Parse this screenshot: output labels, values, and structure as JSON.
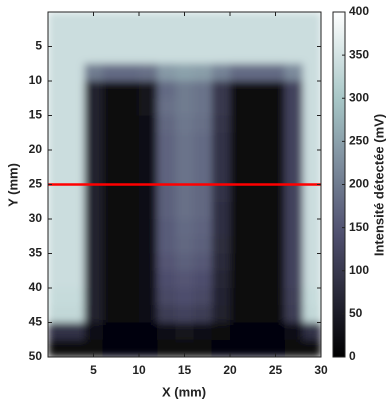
{
  "chart_data": {
    "type": "heatmap",
    "xlabel": "X (mm)",
    "ylabel": "Y (mm)",
    "colorbar_label": "Intensité détectée (mV)",
    "colormap": "bone",
    "x": [
      1,
      3,
      5,
      7,
      9,
      11,
      13,
      15,
      17,
      19,
      21,
      23,
      25,
      27,
      29
    ],
    "y": [
      1.25,
      3.75,
      6.25,
      8.75,
      11.25,
      13.75,
      16.25,
      18.75,
      21.25,
      23.75,
      26.25,
      28.75,
      31.25,
      33.75,
      36.25,
      38.75,
      41.25,
      43.75,
      46.25,
      48.75
    ],
    "z": [
      [
        340,
        340,
        340,
        340,
        340,
        340,
        340,
        340,
        340,
        340,
        340,
        340,
        340,
        340,
        340
      ],
      [
        340,
        340,
        340,
        340,
        340,
        340,
        340,
        340,
        340,
        340,
        340,
        340,
        340,
        340,
        340
      ],
      [
        340,
        340,
        340,
        340,
        340,
        340,
        340,
        340,
        340,
        340,
        340,
        340,
        340,
        340,
        340
      ],
      [
        340,
        340,
        200,
        180,
        180,
        185,
        240,
        250,
        245,
        210,
        180,
        180,
        180,
        220,
        340
      ],
      [
        340,
        340,
        60,
        15,
        15,
        35,
        180,
        200,
        190,
        100,
        20,
        15,
        15,
        120,
        340
      ],
      [
        340,
        340,
        60,
        15,
        15,
        35,
        185,
        200,
        190,
        100,
        20,
        15,
        15,
        120,
        340
      ],
      [
        340,
        340,
        60,
        15,
        15,
        30,
        175,
        195,
        185,
        95,
        20,
        15,
        15,
        120,
        340
      ],
      [
        340,
        340,
        60,
        15,
        15,
        30,
        170,
        190,
        180,
        90,
        20,
        15,
        15,
        120,
        340
      ],
      [
        340,
        340,
        60,
        15,
        15,
        30,
        170,
        190,
        180,
        90,
        20,
        15,
        15,
        120,
        340
      ],
      [
        340,
        340,
        60,
        15,
        15,
        30,
        170,
        190,
        180,
        90,
        20,
        15,
        15,
        120,
        340
      ],
      [
        340,
        340,
        60,
        15,
        15,
        30,
        165,
        185,
        175,
        90,
        20,
        15,
        15,
        120,
        340
      ],
      [
        340,
        340,
        60,
        15,
        15,
        30,
        165,
        185,
        175,
        85,
        20,
        15,
        15,
        120,
        340
      ],
      [
        340,
        340,
        60,
        15,
        15,
        30,
        160,
        180,
        170,
        85,
        20,
        15,
        15,
        120,
        340
      ],
      [
        340,
        340,
        60,
        15,
        15,
        30,
        160,
        175,
        165,
        80,
        20,
        15,
        15,
        120,
        340
      ],
      [
        340,
        340,
        60,
        15,
        15,
        30,
        150,
        165,
        155,
        75,
        20,
        15,
        15,
        120,
        340
      ],
      [
        340,
        340,
        60,
        15,
        15,
        28,
        140,
        150,
        140,
        70,
        18,
        15,
        15,
        120,
        340
      ],
      [
        335,
        335,
        60,
        15,
        15,
        26,
        130,
        140,
        130,
        65,
        16,
        15,
        15,
        115,
        335
      ],
      [
        330,
        330,
        60,
        15,
        15,
        25,
        110,
        120,
        110,
        60,
        15,
        15,
        15,
        110,
        330
      ],
      [
        90,
        90,
        30,
        10,
        10,
        10,
        30,
        40,
        30,
        15,
        10,
        10,
        10,
        30,
        90
      ],
      [
        15,
        15,
        12,
        10,
        10,
        10,
        12,
        15,
        12,
        10,
        10,
        10,
        10,
        12,
        15
      ]
    ],
    "xlim": [
      0,
      30
    ],
    "ylim": [
      0,
      50
    ],
    "y_reversed": true,
    "clim": [
      0,
      400
    ],
    "xticks": [
      5,
      10,
      15,
      20,
      25,
      30
    ],
    "yticks": [
      5,
      10,
      15,
      20,
      25,
      30,
      35,
      40,
      45,
      50
    ],
    "cticks": [
      0,
      50,
      100,
      150,
      200,
      250,
      300,
      350,
      400
    ],
    "hline": {
      "y": 25,
      "color": "#ff0000"
    }
  }
}
